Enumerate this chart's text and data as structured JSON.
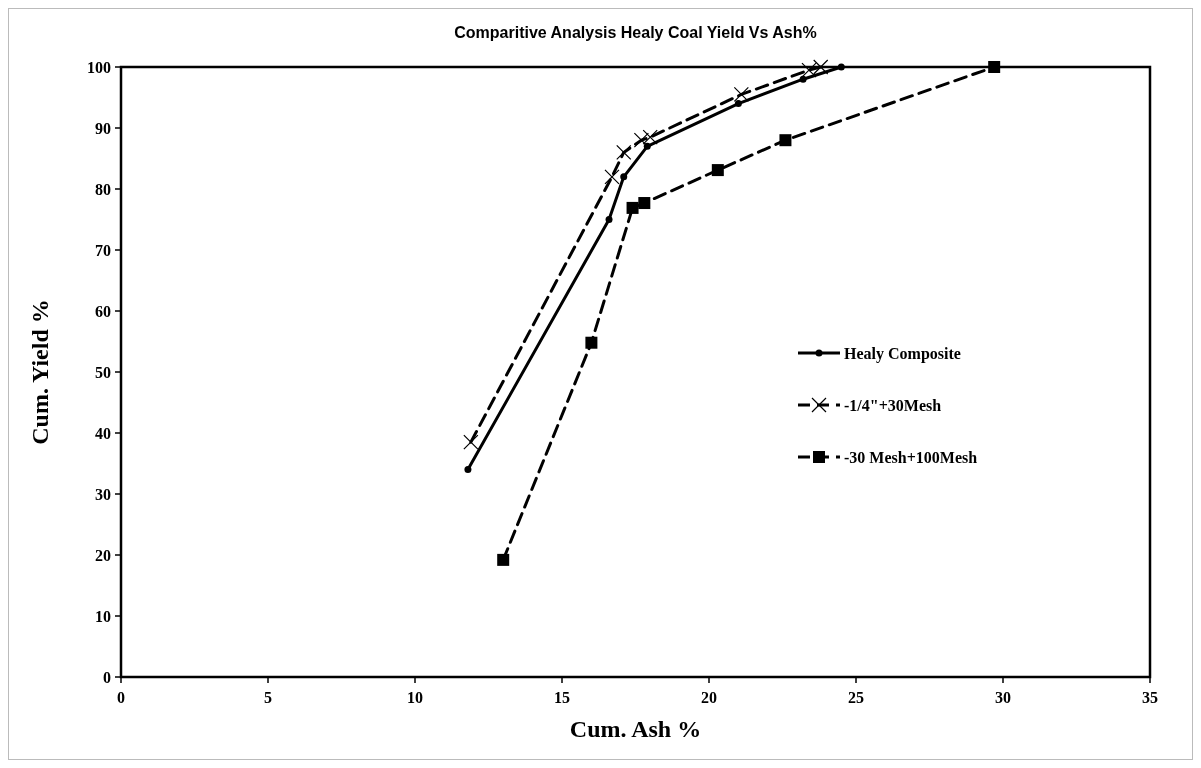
{
  "chart_data": {
    "type": "line",
    "title": "Comparitive Analysis Healy Coal Yield Vs Ash%",
    "xlabel": "Cum. Ash %",
    "ylabel": "Cum. Yield %",
    "xlim": [
      0,
      35
    ],
    "xticks": [
      0,
      5,
      10,
      15,
      20,
      25,
      30,
      35
    ],
    "ylim": [
      0,
      100
    ],
    "yticks": [
      0,
      10,
      20,
      30,
      40,
      50,
      60,
      70,
      80,
      90,
      100
    ],
    "grid": false,
    "legend": "right",
    "series": [
      {
        "name": "Healy Composite",
        "color": "#000000",
        "marker": "circle",
        "line_style": "solid",
        "x": [
          11.8,
          16.6,
          17.1,
          17.9,
          21.0,
          23.2,
          24.5
        ],
        "values": [
          34,
          75,
          82,
          87,
          94,
          98,
          100
        ]
      },
      {
        "name": "-1/4\"+30Mesh",
        "color": "#000000",
        "marker": "cross",
        "line_style": "dashed",
        "x": [
          11.9,
          16.7,
          17.1,
          17.7,
          18.0,
          21.1,
          23.4,
          23.8
        ],
        "values": [
          38.5,
          82,
          86,
          88,
          88.5,
          95.5,
          99.5,
          100
        ]
      },
      {
        "name": "-30 Mesh+100Mesh",
        "color": "#000000",
        "marker": "square",
        "line_style": "dashed",
        "x": [
          13.0,
          16.0,
          17.4,
          17.8,
          20.3,
          22.6,
          29.7
        ],
        "values": [
          19.2,
          54.8,
          76.9,
          77.7,
          83.1,
          88,
          100
        ]
      }
    ]
  }
}
